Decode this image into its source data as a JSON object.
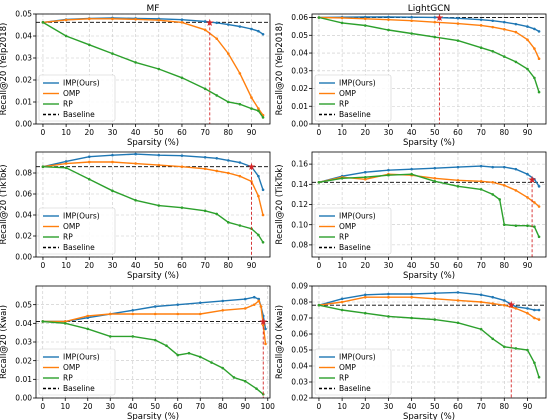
{
  "chart_data": [
    {
      "type": "line",
      "title": "MF",
      "ylabel": "Recall@20 (Yelp2018)",
      "xlabel": "Sparsity (%)",
      "xlim": [
        -3,
        98
      ],
      "ylim": [
        0,
        0.05
      ],
      "xticks": [
        0,
        10,
        20,
        30,
        40,
        50,
        60,
        70,
        80,
        90
      ],
      "yticks": [
        0.0,
        0.01,
        0.02,
        0.03,
        0.04,
        0.05
      ],
      "ytick_labels": [
        "0.00",
        "0.01",
        "0.02",
        "0.03",
        "0.04",
        "0.05"
      ],
      "baseline": 0.0462,
      "marker": {
        "x": 72,
        "y": 0.0462
      },
      "legend": {
        "position": "lower-left",
        "entries": [
          "IMP(Ours)",
          "OMP",
          "RP",
          "Baseline"
        ]
      },
      "series": [
        {
          "name": "IMP(Ours)",
          "color": "#1f77b4",
          "x": [
            0,
            10,
            20,
            30,
            40,
            50,
            60,
            70,
            75,
            80,
            85,
            90,
            93,
            95
          ],
          "y": [
            0.0462,
            0.0475,
            0.048,
            0.0482,
            0.048,
            0.0478,
            0.0474,
            0.0466,
            0.046,
            0.0452,
            0.0443,
            0.0432,
            0.0422,
            0.0408
          ]
        },
        {
          "name": "OMP",
          "color": "#ff7f0e",
          "x": [
            0,
            10,
            20,
            30,
            40,
            50,
            60,
            70,
            75,
            80,
            85,
            90,
            93,
            95
          ],
          "y": [
            0.0462,
            0.0473,
            0.0478,
            0.0478,
            0.0476,
            0.0472,
            0.0462,
            0.0428,
            0.0388,
            0.032,
            0.023,
            0.012,
            0.007,
            0.004
          ]
        },
        {
          "name": "RP",
          "color": "#2ca02c",
          "x": [
            0,
            10,
            20,
            30,
            40,
            50,
            60,
            70,
            75,
            80,
            85,
            90,
            93,
            95
          ],
          "y": [
            0.0462,
            0.04,
            0.036,
            0.032,
            0.028,
            0.025,
            0.021,
            0.016,
            0.013,
            0.01,
            0.009,
            0.007,
            0.006,
            0.003
          ]
        }
      ]
    },
    {
      "type": "line",
      "title": "LightGCN",
      "ylabel": "Recall@20 (Yelp2018)",
      "xlabel": "Sparsity (%)",
      "xlim": [
        -3,
        98
      ],
      "ylim": [
        0,
        0.062
      ],
      "xticks": [
        0,
        10,
        20,
        30,
        40,
        50,
        60,
        70,
        80,
        90
      ],
      "yticks": [
        0.0,
        0.01,
        0.02,
        0.03,
        0.04,
        0.05,
        0.06
      ],
      "ytick_labels": [
        "0.00",
        "0.01",
        "0.02",
        "0.03",
        "0.04",
        "0.05",
        "0.06"
      ],
      "baseline": 0.06,
      "marker": {
        "x": 52,
        "y": 0.06
      },
      "legend": {
        "position": "lower-left",
        "entries": [
          "IMP(Ours)",
          "OMP",
          "RP",
          "Baseline"
        ]
      },
      "series": [
        {
          "name": "IMP(Ours)",
          "color": "#1f77b4",
          "x": [
            0,
            10,
            20,
            30,
            40,
            50,
            60,
            70,
            75,
            80,
            85,
            90,
            93,
            95
          ],
          "y": [
            0.06,
            0.0602,
            0.0603,
            0.0603,
            0.0602,
            0.0601,
            0.0596,
            0.0588,
            0.0582,
            0.0574,
            0.0563,
            0.0549,
            0.0536,
            0.0522
          ]
        },
        {
          "name": "OMP",
          "color": "#ff7f0e",
          "x": [
            0,
            10,
            20,
            30,
            40,
            50,
            60,
            70,
            75,
            80,
            85,
            90,
            93,
            95
          ],
          "y": [
            0.06,
            0.0598,
            0.0593,
            0.0588,
            0.0582,
            0.0574,
            0.0566,
            0.0556,
            0.0546,
            0.0534,
            0.0518,
            0.0475,
            0.0425,
            0.0368
          ]
        },
        {
          "name": "RP",
          "color": "#2ca02c",
          "x": [
            0,
            10,
            20,
            30,
            40,
            50,
            60,
            70,
            75,
            80,
            85,
            90,
            93,
            95
          ],
          "y": [
            0.06,
            0.057,
            0.0555,
            0.053,
            0.051,
            0.049,
            0.047,
            0.043,
            0.041,
            0.038,
            0.035,
            0.031,
            0.026,
            0.018
          ]
        }
      ]
    },
    {
      "type": "line",
      "title": "",
      "ylabel": "Recall@20 (TikTok)",
      "xlabel": "Sparsity (%)",
      "xlim": [
        -3,
        98
      ],
      "ylim": [
        0,
        0.1
      ],
      "xticks": [
        0,
        10,
        20,
        30,
        40,
        50,
        60,
        70,
        80,
        90
      ],
      "yticks": [
        0.0,
        0.02,
        0.04,
        0.06,
        0.08
      ],
      "ytick_labels": [
        "0.00",
        "0.02",
        "0.04",
        "0.06",
        "0.08"
      ],
      "baseline": 0.086,
      "marker": {
        "x": 90,
        "y": 0.086
      },
      "legend": {
        "position": "lower-left",
        "entries": [
          "IMP(Ours)",
          "OMP",
          "RP",
          "Baseline"
        ]
      },
      "series": [
        {
          "name": "IMP(Ours)",
          "color": "#1f77b4",
          "x": [
            0,
            10,
            20,
            30,
            40,
            50,
            60,
            70,
            75,
            80,
            85,
            90,
            93,
            95
          ],
          "y": [
            0.086,
            0.091,
            0.0955,
            0.097,
            0.098,
            0.097,
            0.0965,
            0.095,
            0.094,
            0.092,
            0.09,
            0.086,
            0.077,
            0.064
          ]
        },
        {
          "name": "OMP",
          "color": "#ff7f0e",
          "x": [
            0,
            10,
            20,
            30,
            40,
            50,
            60,
            70,
            75,
            80,
            85,
            90,
            93,
            95
          ],
          "y": [
            0.086,
            0.089,
            0.0905,
            0.0905,
            0.089,
            0.0875,
            0.086,
            0.084,
            0.082,
            0.08,
            0.077,
            0.072,
            0.058,
            0.04
          ]
        },
        {
          "name": "RP",
          "color": "#2ca02c",
          "x": [
            0,
            10,
            20,
            30,
            40,
            50,
            60,
            70,
            75,
            80,
            85,
            90,
            93,
            95
          ],
          "y": [
            0.086,
            0.085,
            0.074,
            0.063,
            0.054,
            0.049,
            0.047,
            0.044,
            0.041,
            0.033,
            0.03,
            0.027,
            0.021,
            0.014
          ]
        }
      ]
    },
    {
      "type": "line",
      "title": "",
      "ylabel": "Recall@20 (TikTok)",
      "xlabel": "Sparsity (%)",
      "xlim": [
        -3,
        98
      ],
      "ylim": [
        0.068,
        0.172
      ],
      "xticks": [
        0,
        10,
        20,
        30,
        40,
        50,
        60,
        70,
        80,
        90
      ],
      "yticks": [
        0.08,
        0.1,
        0.12,
        0.14,
        0.16
      ],
      "ytick_labels": [
        "0.08",
        "0.10",
        "0.12",
        "0.14",
        "0.16"
      ],
      "baseline": 0.142,
      "marker": {
        "x": 92,
        "y": 0.145
      },
      "legend": {
        "position": "lower-left",
        "entries": [
          "IMP(Ours)",
          "OMP",
          "RP",
          "Baseline"
        ]
      },
      "series": [
        {
          "name": "IMP(Ours)",
          "color": "#1f77b4",
          "x": [
            0,
            10,
            20,
            30,
            40,
            50,
            60,
            70,
            75,
            80,
            85,
            90,
            93,
            95
          ],
          "y": [
            0.142,
            0.148,
            0.152,
            0.154,
            0.155,
            0.156,
            0.157,
            0.158,
            0.157,
            0.157,
            0.155,
            0.15,
            0.145,
            0.138
          ]
        },
        {
          "name": "OMP",
          "color": "#ff7f0e",
          "x": [
            0,
            10,
            20,
            30,
            40,
            50,
            60,
            70,
            75,
            80,
            85,
            90,
            93,
            95
          ],
          "y": [
            0.142,
            0.147,
            0.145,
            0.15,
            0.149,
            0.146,
            0.144,
            0.143,
            0.142,
            0.139,
            0.134,
            0.127,
            0.122,
            0.118
          ]
        },
        {
          "name": "RP",
          "color": "#2ca02c",
          "x": [
            0,
            10,
            20,
            30,
            40,
            50,
            60,
            70,
            75,
            78,
            80,
            85,
            90,
            93,
            95
          ],
          "y": [
            0.142,
            0.146,
            0.147,
            0.149,
            0.15,
            0.143,
            0.138,
            0.135,
            0.13,
            0.125,
            0.1,
            0.099,
            0.099,
            0.098,
            0.088
          ]
        }
      ]
    },
    {
      "type": "line",
      "title": "",
      "ylabel": "Recall@20 (Kwai)",
      "xlabel": "Sparsity (%)",
      "xlim": [
        -3,
        101
      ],
      "ylim": [
        0,
        0.06
      ],
      "xticks": [
        0,
        10,
        20,
        30,
        40,
        50,
        60,
        70,
        80,
        90,
        100
      ],
      "yticks": [
        0.0,
        0.01,
        0.02,
        0.03,
        0.04,
        0.05
      ],
      "ytick_labels": [
        "0.00",
        "0.01",
        "0.02",
        "0.03",
        "0.04",
        "0.05"
      ],
      "baseline": 0.041,
      "marker": {
        "x": 98,
        "y": 0.041
      },
      "legend": {
        "position": "lower-left",
        "entries": [
          "IMP(Ours)",
          "OMP",
          "RP",
          "Baseline"
        ]
      },
      "series": [
        {
          "name": "IMP(Ours)",
          "color": "#1f77b4",
          "x": [
            0,
            10,
            20,
            30,
            40,
            50,
            60,
            70,
            80,
            90,
            94,
            96,
            97,
            98,
            99
          ],
          "y": [
            0.041,
            0.041,
            0.043,
            0.045,
            0.047,
            0.049,
            0.05,
            0.051,
            0.052,
            0.053,
            0.054,
            0.053,
            0.049,
            0.044,
            0.037
          ]
        },
        {
          "name": "OMP",
          "color": "#ff7f0e",
          "x": [
            0,
            10,
            20,
            30,
            40,
            50,
            60,
            70,
            80,
            90,
            94,
            96,
            97,
            98,
            99
          ],
          "y": [
            0.041,
            0.041,
            0.044,
            0.045,
            0.045,
            0.045,
            0.045,
            0.045,
            0.047,
            0.048,
            0.05,
            0.052,
            0.049,
            0.039,
            0.029
          ]
        },
        {
          "name": "RP",
          "color": "#2ca02c",
          "x": [
            0,
            10,
            20,
            30,
            40,
            50,
            55,
            60,
            65,
            70,
            75,
            80,
            85,
            90,
            95,
            98
          ],
          "y": [
            0.041,
            0.04,
            0.037,
            0.033,
            0.033,
            0.031,
            0.028,
            0.023,
            0.024,
            0.022,
            0.019,
            0.016,
            0.011,
            0.009,
            0.005,
            0.002
          ]
        }
      ]
    },
    {
      "type": "line",
      "title": "",
      "ylabel": "Recall@20 (Kwai)",
      "xlabel": "Sparsity (%)",
      "xlim": [
        -3,
        98
      ],
      "ylim": [
        0.02,
        0.09
      ],
      "xticks": [
        0,
        10,
        20,
        30,
        40,
        50,
        60,
        70,
        80,
        90
      ],
      "yticks": [
        0.02,
        0.03,
        0.04,
        0.05,
        0.06,
        0.07,
        0.08,
        0.09
      ],
      "ytick_labels": [
        "0.02",
        "0.03",
        "0.04",
        "0.05",
        "0.06",
        "0.07",
        "0.08",
        "0.09"
      ],
      "baseline": 0.078,
      "marker": {
        "x": 83,
        "y": 0.0785
      },
      "legend": {
        "position": "lower-left",
        "entries": [
          "IMP(Ours)",
          "OMP",
          "RP",
          "Baseline"
        ]
      },
      "series": [
        {
          "name": "IMP(Ours)",
          "color": "#1f77b4",
          "x": [
            0,
            10,
            20,
            30,
            40,
            50,
            60,
            70,
            75,
            80,
            85,
            90,
            93,
            95
          ],
          "y": [
            0.078,
            0.082,
            0.0845,
            0.085,
            0.085,
            0.0855,
            0.086,
            0.0845,
            0.083,
            0.081,
            0.077,
            0.076,
            0.075,
            0.075
          ]
        },
        {
          "name": "OMP",
          "color": "#ff7f0e",
          "x": [
            0,
            10,
            20,
            30,
            40,
            50,
            60,
            70,
            75,
            80,
            85,
            90,
            93,
            95
          ],
          "y": [
            0.078,
            0.08,
            0.083,
            0.083,
            0.083,
            0.082,
            0.081,
            0.08,
            0.079,
            0.078,
            0.076,
            0.073,
            0.07,
            0.069
          ]
        },
        {
          "name": "RP",
          "color": "#2ca02c",
          "x": [
            0,
            10,
            20,
            30,
            40,
            50,
            60,
            70,
            75,
            80,
            85,
            90,
            93,
            95
          ],
          "y": [
            0.078,
            0.075,
            0.073,
            0.071,
            0.07,
            0.069,
            0.067,
            0.063,
            0.057,
            0.052,
            0.051,
            0.05,
            0.042,
            0.033
          ]
        }
      ]
    }
  ]
}
